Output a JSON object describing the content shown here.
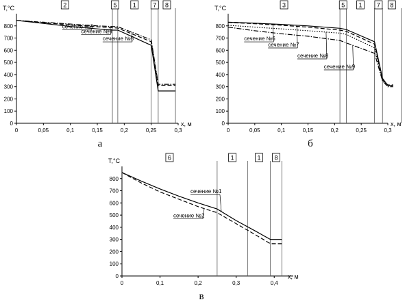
{
  "chart_data": [
    {
      "type": "line",
      "panel_label": "а",
      "xlabel": "x, м",
      "ylabel": "T,°С",
      "xlim": [
        0,
        0.3
      ],
      "ylim": [
        0,
        900
      ],
      "xticks": [
        0,
        0.05,
        0.1,
        0.15,
        0.2,
        0.25,
        0.3
      ],
      "xtick_labels": [
        "0",
        "0,05",
        "0,1",
        "0,15",
        "0,2",
        "0,25",
        "0,3"
      ],
      "yticks": [
        0,
        100,
        200,
        300,
        400,
        500,
        600,
        700,
        800
      ],
      "boundaries": [
        0.178,
        0.188,
        0.25,
        0.263,
        0.295
      ],
      "zones": [
        {
          "label": "2",
          "x": 0.09
        },
        {
          "label": "5",
          "x": 0.183
        },
        {
          "label": "1",
          "x": 0.219
        },
        {
          "label": "7",
          "x": 0.2565
        },
        {
          "label": "8",
          "x": 0.279
        }
      ],
      "series": [
        {
          "name": "сечение №3",
          "style": "solid",
          "x": [
            0,
            0.05,
            0.1,
            0.15,
            0.178,
            0.188,
            0.25,
            0.263,
            0.295
          ],
          "y": [
            845,
            820,
            795,
            775,
            765,
            765,
            640,
            265,
            265
          ]
        },
        {
          "name": "сечение №4",
          "style": "dashed",
          "x": [
            0,
            0.05,
            0.1,
            0.15,
            0.178,
            0.188,
            0.25,
            0.263,
            0.295
          ],
          "y": [
            845,
            826,
            808,
            792,
            785,
            782,
            670,
            312,
            312
          ]
        },
        {
          "name": "сечение №5",
          "style": "dashdot",
          "x": [
            0,
            0.05,
            0.1,
            0.15,
            0.178,
            0.188,
            0.25,
            0.263,
            0.295
          ],
          "y": [
            845,
            830,
            815,
            800,
            795,
            793,
            685,
            320,
            320
          ]
        }
      ],
      "annotations": [
        {
          "text": "сечение №3",
          "x": 0.085,
          "y": 780
        },
        {
          "text": "сечение №4",
          "x": 0.12,
          "y": 740
        },
        {
          "text": "сечение №5",
          "x": 0.16,
          "y": 680
        }
      ]
    },
    {
      "type": "line",
      "panel_label": "б",
      "xlabel": "x, м",
      "ylabel": "T,°С",
      "xlim": [
        0,
        0.3
      ],
      "ylim": [
        0,
        900
      ],
      "xticks": [
        0,
        0.05,
        0.1,
        0.15,
        0.2,
        0.25,
        0.3
      ],
      "xtick_labels": [
        "0",
        "0,05",
        "0,1",
        "0,15",
        "0,2",
        "0,25",
        "0,3"
      ],
      "yticks": [
        0,
        100,
        200,
        300,
        400,
        500,
        600,
        700,
        800
      ],
      "boundaries": [
        0.21,
        0.222,
        0.275,
        0.29,
        0.325
      ],
      "zones": [
        {
          "label": "3",
          "x": 0.105
        },
        {
          "label": "5",
          "x": 0.216
        },
        {
          "label": "1",
          "x": 0.2485
        },
        {
          "label": "7",
          "x": 0.2825
        },
        {
          "label": "8",
          "x": 0.3075
        }
      ],
      "series": [
        {
          "name": "сечение №6",
          "style": "solid",
          "x": [
            0,
            0.05,
            0.1,
            0.15,
            0.21,
            0.222,
            0.275,
            0.29,
            0.3,
            0.31
          ],
          "y": [
            830,
            822,
            812,
            800,
            780,
            770,
            670,
            370,
            310,
            310
          ]
        },
        {
          "name": "сечение №7",
          "style": "dashed",
          "x": [
            0,
            0.05,
            0.1,
            0.15,
            0.21,
            0.222,
            0.275,
            0.29,
            0.3,
            0.31
          ],
          "y": [
            828,
            818,
            805,
            790,
            765,
            755,
            650,
            360,
            315,
            315
          ]
        },
        {
          "name": "сечение №8",
          "style": "dotted",
          "x": [
            0,
            0.05,
            0.1,
            0.15,
            0.21,
            0.222,
            0.275,
            0.29,
            0.3,
            0.31
          ],
          "y": [
            805,
            790,
            775,
            760,
            740,
            730,
            620,
            350,
            308,
            308
          ]
        },
        {
          "name": "сечение №9",
          "style": "dashdot",
          "x": [
            0,
            0.05,
            0.1,
            0.15,
            0.21,
            0.222,
            0.275,
            0.29,
            0.3,
            0.31
          ],
          "y": [
            790,
            760,
            735,
            715,
            680,
            660,
            575,
            350,
            300,
            300
          ]
        }
      ],
      "annotations": [
        {
          "text": "сечение №6",
          "x": 0.03,
          "y": 680
        },
        {
          "text": "сечение №7",
          "x": 0.075,
          "y": 630
        },
        {
          "text": "сечение №8",
          "x": 0.13,
          "y": 540
        },
        {
          "text": "сечение №9",
          "x": 0.18,
          "y": 450
        }
      ]
    },
    {
      "type": "line",
      "panel_label": "в",
      "xlabel": "x, м",
      "ylabel": "T,°С",
      "xlim": [
        0,
        0.45
      ],
      "ylim": [
        0,
        900
      ],
      "xticks": [
        0,
        0.1,
        0.2,
        0.3,
        0.4
      ],
      "xtick_labels": [
        "0",
        "0,1",
        "0,2",
        "0,3",
        "0,4"
      ],
      "yticks": [
        0,
        100,
        200,
        300,
        400,
        500,
        600,
        700,
        800
      ],
      "boundaries": [
        0.25,
        0.33,
        0.39,
        0.42
      ],
      "zones": [
        {
          "label": "6",
          "x": 0.125
        },
        {
          "label": "1",
          "x": 0.29
        },
        {
          "label": "1",
          "x": 0.36
        },
        {
          "label": "8",
          "x": 0.405
        }
      ],
      "series": [
        {
          "name": "сечение №1",
          "style": "solid",
          "x": [
            0,
            0.05,
            0.1,
            0.15,
            0.2,
            0.25,
            0.3,
            0.35,
            0.39,
            0.42
          ],
          "y": [
            850,
            780,
            715,
            655,
            600,
            550,
            455,
            370,
            300,
            300
          ]
        },
        {
          "name": "сечение №2",
          "style": "dashed",
          "x": [
            0,
            0.05,
            0.1,
            0.15,
            0.2,
            0.25,
            0.3,
            0.35,
            0.39,
            0.42
          ],
          "y": [
            850,
            765,
            690,
            630,
            570,
            520,
            430,
            340,
            265,
            265
          ]
        }
      ],
      "annotations": [
        {
          "text": "сечение №1",
          "x": 0.18,
          "y": 680
        },
        {
          "text": "сечение №2",
          "x": 0.135,
          "y": 480
        }
      ]
    }
  ]
}
